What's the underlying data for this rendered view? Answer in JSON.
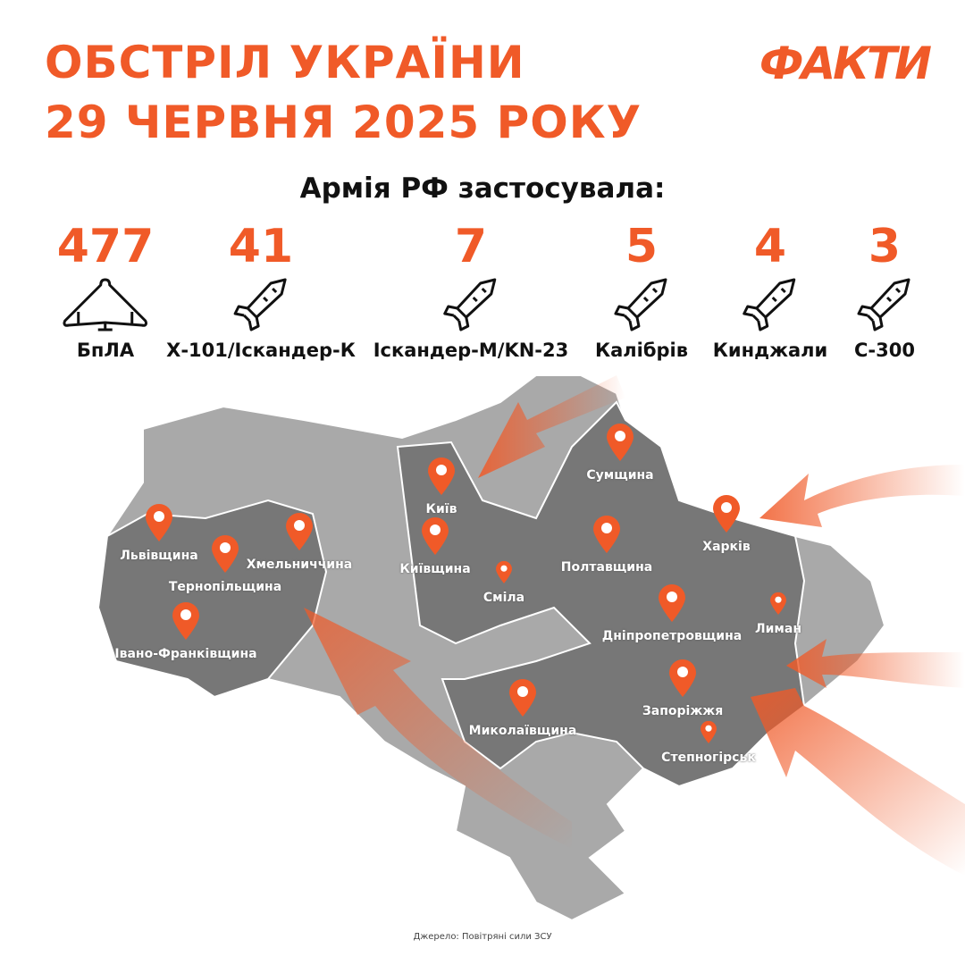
{
  "header": {
    "title_line1": "ОБСТРІЛ УКРАЇНИ",
    "title_line2": "29 ЧЕРВНЯ 2025 РОКУ",
    "logo": "ФАКТИ",
    "subtitle": "Армія РФ застосувала:"
  },
  "colors": {
    "accent": "#F05A28",
    "region_hit": "#777777",
    "region_other": "#A9A9A9"
  },
  "weapons": [
    {
      "count": "477",
      "label": "БпЛА",
      "icon": "drone-icon"
    },
    {
      "count": "41",
      "label": "Х-101/Іскандер-К",
      "icon": "missile-icon"
    },
    {
      "count": "7",
      "label": "Іскандер-М/KN-23",
      "icon": "missile-icon"
    },
    {
      "count": "5",
      "label": "Калібрів",
      "icon": "missile-icon"
    },
    {
      "count": "4",
      "label": "Кинджали",
      "icon": "missile-icon"
    },
    {
      "count": "3",
      "label": "С-300",
      "icon": "missile-icon"
    }
  ],
  "locations": [
    "Львівщина",
    "Тернопільщина",
    "Хмельниччина",
    "Івано-Франківщина",
    "Київ",
    "Київщина",
    "Сміла",
    "Полтавщина",
    "Сумщина",
    "Харків",
    "Лиман",
    "Дніпропетровщина",
    "Запоріжжя",
    "Миколаївщина",
    "Степногірськ"
  ],
  "source": "Джерело: Повітряні сили ЗСУ"
}
